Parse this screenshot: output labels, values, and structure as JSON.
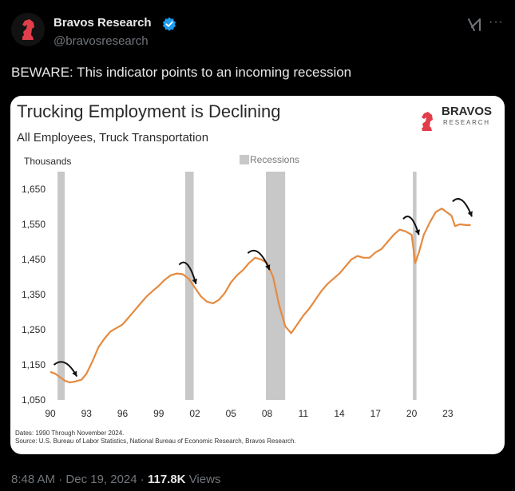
{
  "tweet": {
    "author_name": "Bravos Research",
    "author_handle": "@bravosresearch",
    "text": "BEWARE: This indicator points to an incoming recession",
    "time": "8:48 AM",
    "date": "Dec 19, 2024",
    "views_count": "117.8K",
    "views_label": "Views",
    "more_label": "···"
  },
  "chart_data": {
    "type": "line",
    "title": "Trucking Employment is Declining",
    "subtitle": "All Employees, Truck Transportation",
    "ylabel": "Thousands",
    "legend": "Recessions",
    "brand_line1": "BRAVOS",
    "brand_line2": "RESEARCH",
    "ylim": [
      1050,
      1700
    ],
    "yticks": [
      1050,
      1150,
      1250,
      1350,
      1450,
      1550,
      1650
    ],
    "ytick_labels": [
      "1,050",
      "1,150",
      "1,250",
      "1,350",
      "1,450",
      "1,550",
      "1,650"
    ],
    "xlim": [
      1990,
      2025
    ],
    "xticks": [
      1990,
      1993,
      1996,
      1999,
      2002,
      2005,
      2008,
      2011,
      2014,
      2017,
      2020,
      2023
    ],
    "xtick_labels": [
      "90",
      "93",
      "96",
      "99",
      "02",
      "05",
      "08",
      "11",
      "14",
      "17",
      "20",
      "23"
    ],
    "recessions": [
      [
        1990.6,
        1991.2
      ],
      [
        2001.2,
        2001.9
      ],
      [
        2007.9,
        2009.5
      ],
      [
        2020.1,
        2020.4
      ]
    ],
    "series": [
      {
        "color": "#e58a3f",
        "x": [
          1990.0,
          1990.4,
          1990.8,
          1991.2,
          1991.6,
          1992.0,
          1992.6,
          1993.0,
          1993.5,
          1994.0,
          1994.5,
          1995.0,
          1995.5,
          1996.0,
          1996.5,
          1997.0,
          1997.5,
          1998.0,
          1998.5,
          1999.0,
          1999.5,
          2000.0,
          2000.5,
          2001.0,
          2001.5,
          2002.0,
          2002.5,
          2003.0,
          2003.5,
          2004.0,
          2004.5,
          2005.0,
          2005.5,
          2006.0,
          2006.5,
          2007.0,
          2007.5,
          2008.0,
          2008.5,
          2009.0,
          2009.5,
          2010.0,
          2010.5,
          2011.0,
          2011.5,
          2012.0,
          2012.5,
          2013.0,
          2013.5,
          2014.0,
          2014.5,
          2015.0,
          2015.5,
          2016.0,
          2016.5,
          2017.0,
          2017.5,
          2018.0,
          2018.5,
          2019.0,
          2019.5,
          2020.0,
          2020.3,
          2020.6,
          2021.0,
          2021.5,
          2022.0,
          2022.5,
          2022.9,
          2023.3,
          2023.6,
          2024.0,
          2024.5,
          2024.9
        ],
        "values": [
          1130,
          1125,
          1115,
          1105,
          1100,
          1102,
          1108,
          1125,
          1160,
          1200,
          1225,
          1245,
          1255,
          1265,
          1285,
          1305,
          1325,
          1345,
          1360,
          1375,
          1392,
          1405,
          1410,
          1408,
          1395,
          1370,
          1345,
          1330,
          1325,
          1335,
          1355,
          1385,
          1405,
          1420,
          1440,
          1455,
          1450,
          1440,
          1400,
          1320,
          1260,
          1240,
          1265,
          1290,
          1310,
          1335,
          1360,
          1380,
          1395,
          1410,
          1430,
          1450,
          1460,
          1455,
          1455,
          1470,
          1480,
          1500,
          1520,
          1535,
          1530,
          1520,
          1440,
          1470,
          1520,
          1555,
          1585,
          1595,
          1585,
          1575,
          1545,
          1550,
          1548,
          1548
        ]
      }
    ],
    "notes": [
      "Dates: 1990 Through November 2024.",
      "Source: U.S. Bureau of Labor Statistics, National Bureau of Economic Research, Bravos Research."
    ]
  }
}
